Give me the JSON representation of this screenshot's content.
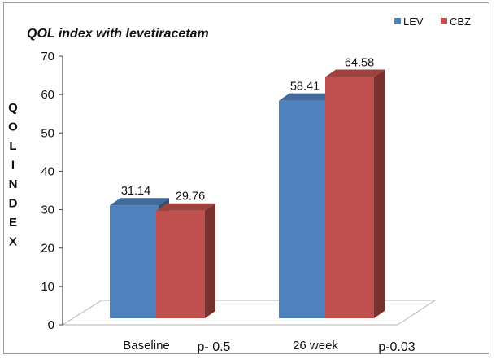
{
  "chart_data": {
    "type": "bar",
    "title": "QOL index  with levetiracetam",
    "ylabel": "QOL INDEX",
    "xlabel": "",
    "categories": [
      "Baseline",
      "26 week"
    ],
    "category_annotations": [
      "p- 0.5",
      "p-0.03"
    ],
    "series": [
      {
        "name": "LEV",
        "values": [
          31.14,
          58.41
        ],
        "color": "#4f81bd"
      },
      {
        "name": "CBZ",
        "values": [
          29.76,
          64.58
        ],
        "color": "#c0504d"
      }
    ],
    "data_labels": [
      [
        "31.14",
        "58.41"
      ],
      [
        "29.76",
        "64.58"
      ]
    ],
    "ylim": [
      0,
      70
    ],
    "yticks": [
      0,
      10,
      20,
      30,
      40,
      50,
      60,
      70
    ],
    "grid": false,
    "legend_position": "top-right",
    "style": "3d-clustered-column"
  }
}
